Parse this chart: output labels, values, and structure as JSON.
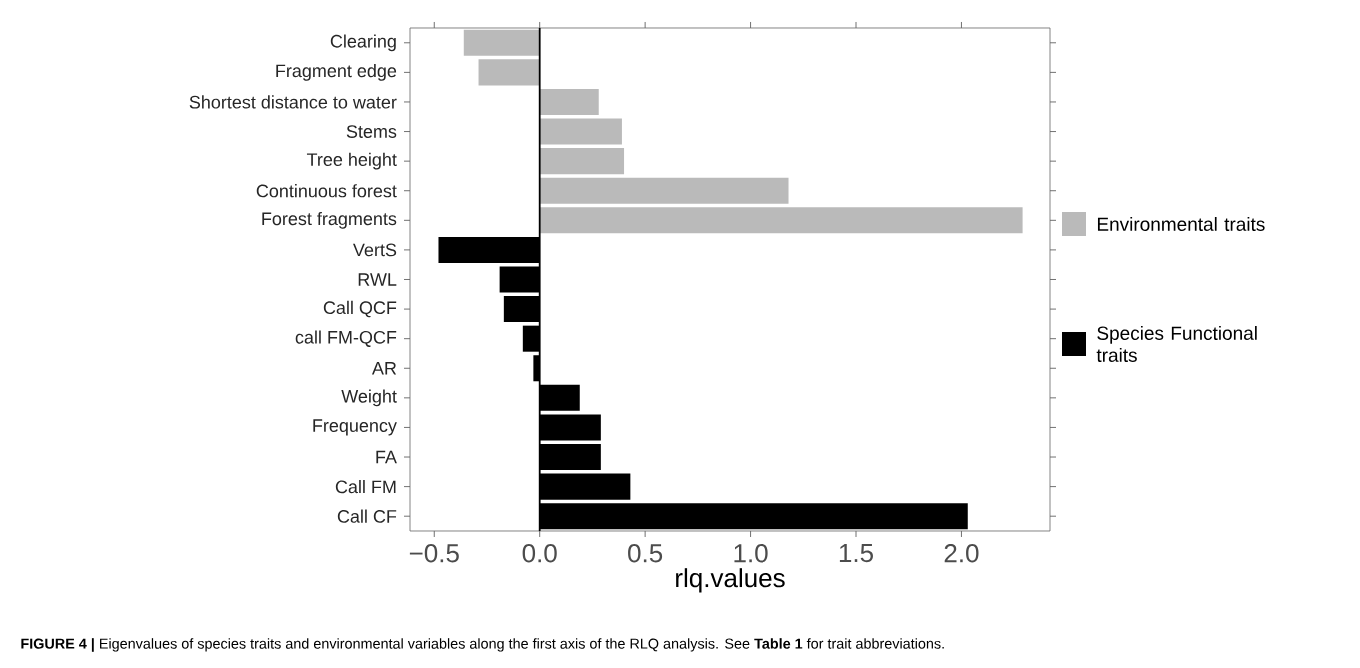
{
  "chart_data": {
    "type": "bar",
    "orientation": "horizontal",
    "categories": [
      "Clearing",
      "Fragment edge",
      "Shortest distance to water",
      "Stems",
      "Tree height",
      "Continuous forest",
      "Forest fragments",
      "VertS",
      "RWL",
      "Call QCF",
      "call FM-QCF",
      "AR",
      "Weight",
      "Frequency",
      "FA",
      "Call FM",
      "Call CF"
    ],
    "series": [
      {
        "name": "Environmental traits",
        "color": "#bababa",
        "values": [
          -0.36,
          -0.29,
          0.28,
          0.39,
          0.4,
          1.18,
          2.29,
          null,
          null,
          null,
          null,
          null,
          null,
          null,
          null,
          null,
          null
        ]
      },
      {
        "name": "Species Functional traits",
        "color": "#000000",
        "values": [
          null,
          null,
          null,
          null,
          null,
          null,
          null,
          -0.48,
          -0.19,
          -0.17,
          -0.08,
          -0.03,
          0.19,
          0.29,
          0.29,
          0.43,
          2.03
        ]
      }
    ],
    "xlim": [
      -0.615,
      2.42
    ],
    "xticks": [
      {
        "value": -0.5,
        "label": "−0.5"
      },
      {
        "value": 0,
        "label": "0.0"
      },
      {
        "value": 0.5,
        "label": "0.5"
      },
      {
        "value": 1,
        "label": "1.0"
      },
      {
        "value": 1.5,
        "label": "1.5"
      },
      {
        "value": 2,
        "label": "2.0"
      }
    ],
    "xlabel": "rlq.values",
    "ref_lines": [
      {
        "axis": "x",
        "value": 0,
        "color": "#000000"
      }
    ],
    "legend": "right",
    "grid": false,
    "annotations": [
      "**FIGURE 4 |** Eigenvalues of species traits and environmental variables along the first axis of the RLQ analysis. See **Table 1** for trait abbreviations."
    ]
  }
}
